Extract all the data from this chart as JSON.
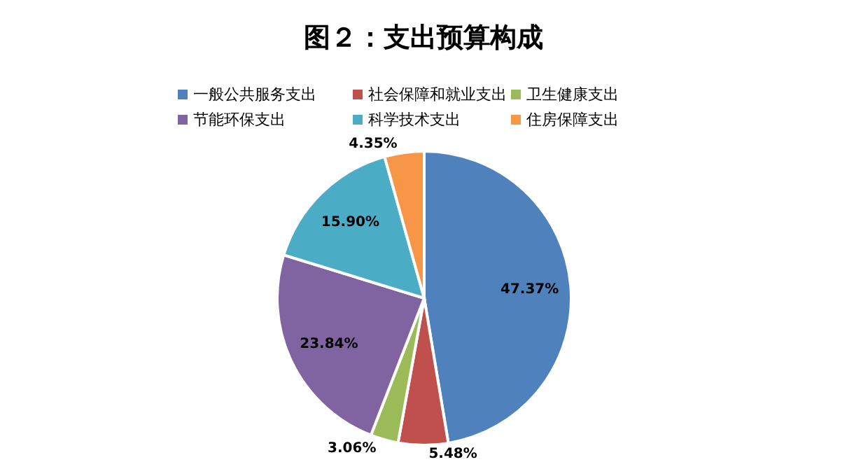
{
  "chart_data": {
    "type": "pie",
    "title": "图２：支出预算构成",
    "categories": [
      "一般公共服务支出",
      "社会保障和就业支出",
      "卫生健康支出",
      "节能环保支出",
      "科学技术支出",
      "住房保障支出"
    ],
    "values": [
      47.37,
      5.48,
      3.06,
      23.84,
      15.9,
      4.35
    ],
    "value_labels": [
      "47.37%",
      "5.48%",
      "3.06%",
      "23.84%",
      "15.90%",
      "4.35%"
    ],
    "colors": [
      "#4f81bd",
      "#c0504d",
      "#9bbb59",
      "#8064a2",
      "#4bacc6",
      "#f79646"
    ],
    "legend": "top"
  }
}
